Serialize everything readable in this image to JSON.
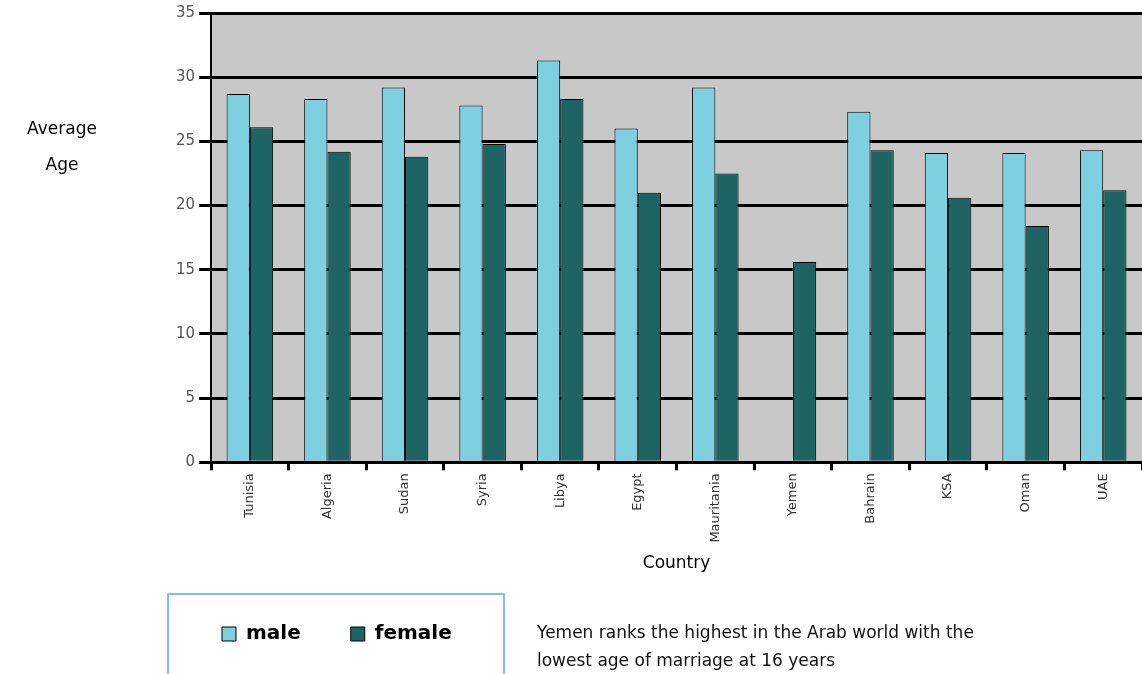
{
  "chart_data": {
    "type": "bar",
    "xlabel": "Country",
    "ylabel": "Average Age",
    "categories": [
      "Tunisia",
      "Algeria",
      "Sudan",
      "Syria",
      "Libya",
      "Egypt",
      "Mauritania",
      "Yemen",
      "Bahrain",
      "KSA",
      "Oman",
      "UAE"
    ],
    "series": [
      {
        "name": "male",
        "color": "#7ecfe0",
        "values": [
          28.7,
          28.3,
          29.2,
          27.8,
          31.3,
          26.0,
          29.2,
          null,
          27.3,
          24.1,
          24.1,
          24.3
        ]
      },
      {
        "name": "female",
        "color": "#1e6464",
        "values": [
          26.1,
          24.2,
          23.8,
          24.8,
          28.3,
          21.0,
          22.5,
          15.6,
          24.3,
          20.6,
          18.4,
          21.2
        ]
      }
    ],
    "ylim": [
      0,
      35
    ],
    "yticks": [
      0,
      5,
      10,
      15,
      20,
      25,
      30,
      35
    ],
    "grid": "y",
    "legend": "bottom left",
    "annotations": [
      "Yemen ranks the highest in the Arab world with the lowest age of marriage at 16 years"
    ]
  }
}
